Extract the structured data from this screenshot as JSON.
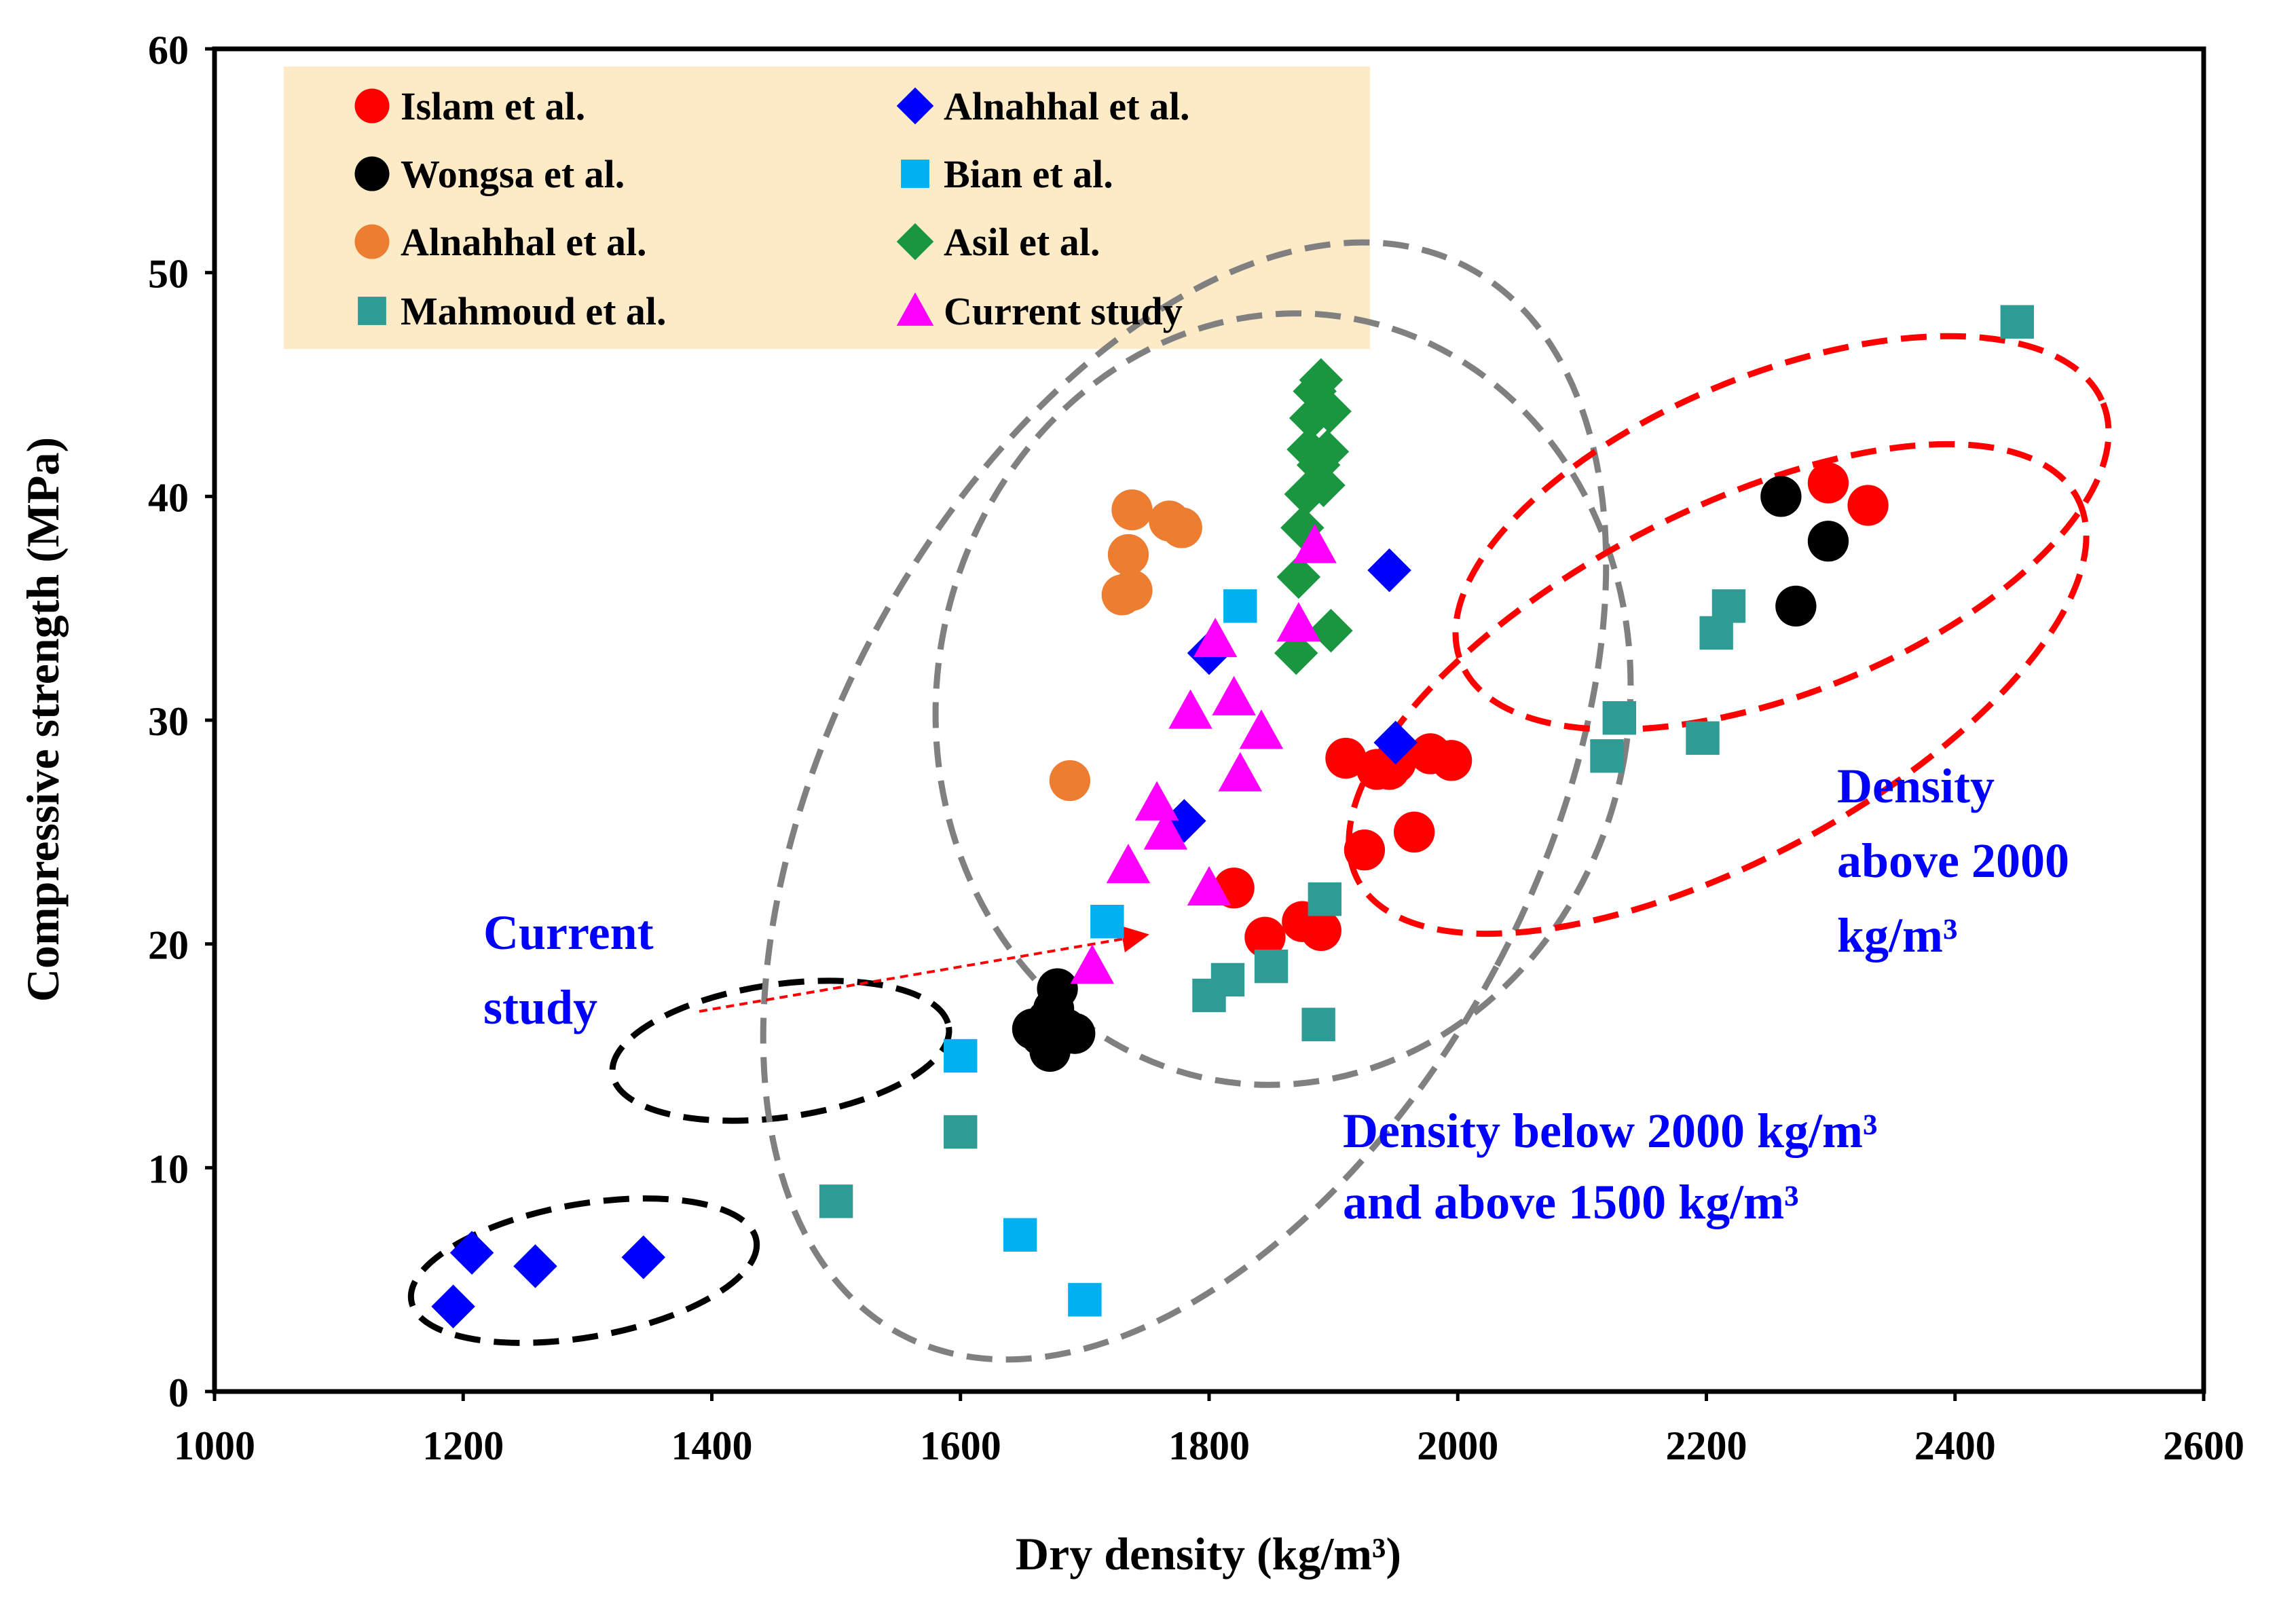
{
  "chart_data": {
    "type": "scatter",
    "title": "",
    "xlabel": "Dry density (kg/m³)",
    "ylabel": "Compressive strength (MPa)",
    "xlim": [
      1000,
      2600
    ],
    "ylim": [
      0,
      60
    ],
    "x_ticks": [
      1000,
      1200,
      1400,
      1600,
      1800,
      2000,
      2200,
      2400,
      2600
    ],
    "y_ticks": [
      0,
      10,
      20,
      30,
      40,
      50,
      60
    ],
    "grid": false,
    "legend_position": "top-left",
    "series": [
      {
        "name": "Islam et al.",
        "marker": "circle",
        "color": "#ff0000",
        "points": [
          [
            1820,
            22.5
          ],
          [
            1845,
            20.3
          ],
          [
            1875,
            21
          ],
          [
            1890,
            20.6
          ],
          [
            1910,
            28.3
          ],
          [
            1925,
            24.2
          ],
          [
            1935,
            27.8
          ],
          [
            1945,
            27.8
          ],
          [
            1950,
            28.1
          ],
          [
            1965,
            25
          ],
          [
            1978,
            28.5
          ],
          [
            1995,
            28.2
          ],
          [
            2298,
            40.6
          ],
          [
            2330,
            39.6
          ]
        ]
      },
      {
        "name": "Alnahhal et al.",
        "marker": "diamond",
        "color": "#0000ff",
        "points": [
          [
            1192,
            3.8
          ],
          [
            1207,
            6.2
          ],
          [
            1258,
            5.6
          ],
          [
            1345,
            6
          ],
          [
            1780,
            25.5
          ],
          [
            1800,
            33
          ],
          [
            1945,
            36.7
          ],
          [
            1950,
            29
          ]
        ]
      },
      {
        "name": "Wongsa et al.",
        "marker": "circle",
        "color": "#000000",
        "points": [
          [
            1658,
            16.2
          ],
          [
            1665,
            15.9
          ],
          [
            1670,
            16.6
          ],
          [
            1672,
            15.2
          ],
          [
            1675,
            17.1
          ],
          [
            1678,
            18
          ],
          [
            1685,
            16.2
          ],
          [
            1692,
            16
          ],
          [
            2260,
            40
          ],
          [
            2272,
            35.1
          ],
          [
            2298,
            38
          ]
        ]
      },
      {
        "name": "Bian et al.",
        "marker": "square",
        "color": "#00b0f0",
        "points": [
          [
            1600,
            15
          ],
          [
            1648,
            7
          ],
          [
            1700,
            4.1
          ],
          [
            1718,
            21
          ],
          [
            1825,
            35.1
          ]
        ]
      },
      {
        "name": "Alnahhal et al.",
        "marker": "circle",
        "color": "#ed7d31",
        "points": [
          [
            1688,
            27.3
          ],
          [
            1730,
            35.6
          ],
          [
            1735,
            37.4
          ],
          [
            1738,
            35.8
          ],
          [
            1738,
            39.4
          ],
          [
            1768,
            38.9
          ],
          [
            1778,
            38.6
          ]
        ]
      },
      {
        "name": "Asil et al.",
        "marker": "diamond",
        "color": "#1a9641",
        "points": [
          [
            1870,
            33
          ],
          [
            1872,
            36.4
          ],
          [
            1875,
            38.6
          ],
          [
            1878,
            40.1
          ],
          [
            1880,
            42.1
          ],
          [
            1882,
            43.5
          ],
          [
            1885,
            44.7
          ],
          [
            1888,
            41.4
          ],
          [
            1890,
            45.2
          ],
          [
            1892,
            40.5
          ],
          [
            1895,
            42
          ],
          [
            1897,
            43.8
          ],
          [
            1898,
            34
          ]
        ]
      },
      {
        "name": "Mahmoud et al.",
        "marker": "square",
        "color": "#2e9c95",
        "points": [
          [
            1500,
            8.5
          ],
          [
            1600,
            11.6
          ],
          [
            1800,
            17.7
          ],
          [
            1815,
            18.4
          ],
          [
            1850,
            19
          ],
          [
            1888,
            16.4
          ],
          [
            1893,
            22
          ],
          [
            2120,
            28.4
          ],
          [
            2130,
            30.1
          ],
          [
            2197,
            29.2
          ],
          [
            2208,
            33.9
          ],
          [
            2218,
            35.1
          ],
          [
            2450,
            47.8
          ]
        ]
      },
      {
        "name": "Current study",
        "marker": "triangle",
        "color": "#ff00ff",
        "points": [
          [
            1706,
            19
          ],
          [
            1735,
            23.5
          ],
          [
            1758,
            26.3
          ],
          [
            1765,
            25
          ],
          [
            1785,
            30.4
          ],
          [
            1800,
            22.5
          ],
          [
            1805,
            33.6
          ],
          [
            1820,
            31
          ],
          [
            1825,
            27.6
          ],
          [
            1842,
            29.5
          ],
          [
            1872,
            34.3
          ],
          [
            1885,
            37.8
          ]
        ]
      }
    ],
    "annotations": [
      {
        "text_lines": [
          "Current",
          "study"
        ],
        "color": "#0000ff"
      },
      {
        "text_lines": [
          "Density",
          "above 2000",
          "kg/m³"
        ],
        "color": "#0000ff"
      },
      {
        "text_lines": [
          "Density below 2000 kg/m³",
          "and above 1500 kg/m³"
        ],
        "color": "#0000ff"
      }
    ]
  }
}
